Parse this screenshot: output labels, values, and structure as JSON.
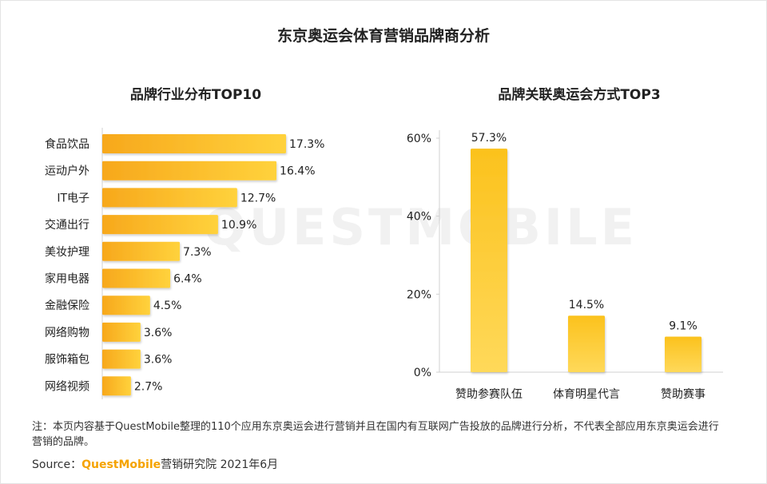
{
  "title": "东京奥运会体育营销品牌商分析",
  "watermark": "QUESTMOBILE",
  "note": "注：本页内容基于QuestMobile整理的110个应用东京奥运会进行营销并且在国内有互联网广告投放的品牌进行分析，不代表全部应用东京奥运会进行营销的品牌。",
  "source": {
    "label": "Source：",
    "brand": "QuestMobile",
    "rest": "营销研究院 2021年6月"
  },
  "colors": {
    "bar_top": "#fbc21d",
    "bar_bottom": "#ffd95a",
    "bar_left": "#f7a81c",
    "bar_right": "#ffd23c",
    "axis": "#d0d0d0"
  },
  "chart_data": [
    {
      "type": "bar",
      "orientation": "horizontal",
      "title": "品牌行业分布TOP10",
      "categories": [
        "食品饮品",
        "运动户外",
        "IT电子",
        "交通出行",
        "美妆护理",
        "家用电器",
        "金融保险",
        "网络购物",
        "服饰箱包",
        "网络视频"
      ],
      "values": [
        17.3,
        16.4,
        12.7,
        10.9,
        7.3,
        6.4,
        4.5,
        3.6,
        3.6,
        2.7
      ],
      "value_labels": [
        "17.3%",
        "16.4%",
        "12.7%",
        "10.9%",
        "7.3%",
        "6.4%",
        "4.5%",
        "3.6%",
        "3.6%",
        "2.7%"
      ],
      "xlim": [
        0,
        17.3
      ],
      "grid": false
    },
    {
      "type": "bar",
      "orientation": "vertical",
      "title": "品牌关联奥运会方式TOP3",
      "categories": [
        "赞助参赛队伍",
        "体育明星代言",
        "赞助赛事"
      ],
      "values": [
        57.3,
        14.5,
        9.1
      ],
      "value_labels": [
        "57.3%",
        "14.5%",
        "9.1%"
      ],
      "ylim": [
        0,
        60
      ],
      "yticks": [
        0,
        20,
        40,
        60
      ],
      "ytick_labels": [
        "0%",
        "20%",
        "40%",
        "60%"
      ],
      "grid": false
    }
  ]
}
